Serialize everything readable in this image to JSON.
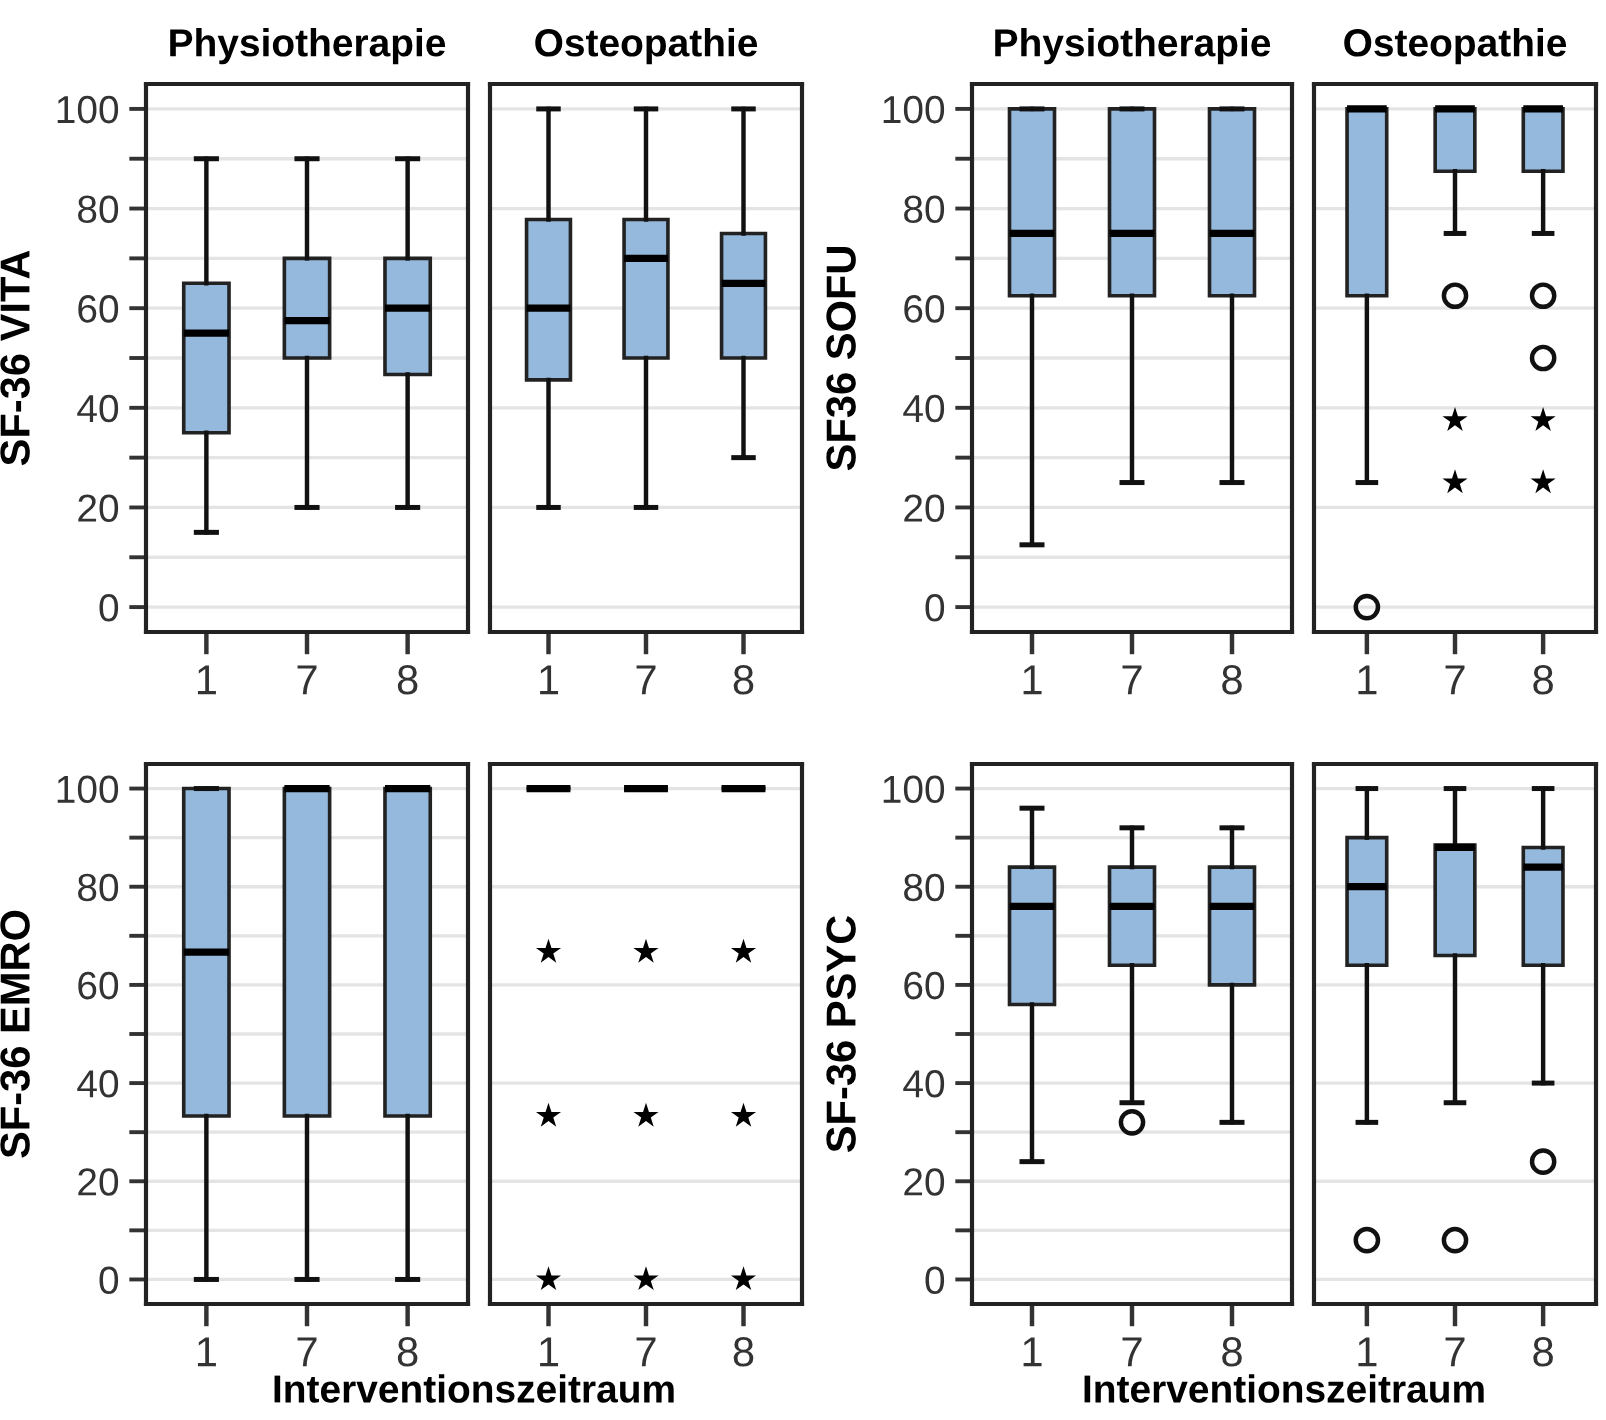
{
  "chart_data": [
    {
      "type": "box",
      "title": "Physiotherapie",
      "ylabel": "SF-36 VITA",
      "categories": [
        "1",
        "7",
        "8"
      ],
      "ylim": [
        -5,
        105
      ],
      "yticks": [
        0,
        {
          "value": 10,
          "label": null
        },
        20,
        {
          "value": 30,
          "label": null
        },
        40,
        {
          "value": 50,
          "label": null
        },
        60,
        {
          "value": 70,
          "label": null
        },
        80,
        {
          "value": 90,
          "label": null
        },
        100
      ],
      "grid": "y",
      "marker": "circle",
      "series": [
        {
          "type": "box",
          "color": "#95b9dc",
          "boxes": [
            {
              "low": 15,
              "q1": 35,
              "median": 55,
              "q3": 65,
              "high": 90
            },
            {
              "low": 20,
              "q1": 50,
              "median": 57.5,
              "q3": 70,
              "high": 90
            },
            {
              "low": 20,
              "q1": 46.7,
              "median": 60,
              "q3": 70,
              "high": 90
            }
          ]
        }
      ]
    },
    {
      "type": "box",
      "title": "Osteopathie",
      "categories": [
        "1",
        "7",
        "8"
      ],
      "ylim": [
        -5,
        105
      ],
      "yticks": [
        0,
        20,
        40,
        60,
        80,
        100
      ],
      "tick_labels": "x",
      "grid": "y",
      "marker": "circle",
      "series": [
        {
          "type": "box",
          "color": "#95b9dc",
          "boxes": [
            {
              "low": 20,
              "q1": 45.6,
              "median": 60,
              "q3": 77.8,
              "high": 100
            },
            {
              "low": 20,
              "q1": 50,
              "median": 70,
              "q3": 77.8,
              "high": 100
            },
            {
              "low": 30,
              "q1": 50,
              "median": 65,
              "q3": 75,
              "high": 100
            }
          ]
        }
      ]
    },
    {
      "type": "box",
      "title": "Physiotherapie",
      "ylabel": "SF36 SOFU",
      "categories": [
        "1",
        "7",
        "8"
      ],
      "ylim": [
        -5,
        105
      ],
      "yticks": [
        0,
        {
          "value": 10,
          "label": null
        },
        20,
        {
          "value": 30,
          "label": null
        },
        40,
        {
          "value": 50,
          "label": null
        },
        60,
        {
          "value": 70,
          "label": null
        },
        80,
        {
          "value": 90,
          "label": null
        },
        100
      ],
      "grid": "y",
      "marker": "circle",
      "series": [
        {
          "type": "box",
          "color": "#95b9dc",
          "boxes": [
            {
              "low": 12.5,
              "q1": 62.5,
              "median": 75,
              "q3": 100,
              "high": 100
            },
            {
              "low": 25,
              "q1": 62.5,
              "median": 75,
              "q3": 100,
              "high": 100
            },
            {
              "low": 25,
              "q1": 62.5,
              "median": 75,
              "q3": 100,
              "high": 100
            }
          ]
        }
      ]
    },
    {
      "type": "box",
      "title": "Osteopathie",
      "categories": [
        "1",
        "7",
        "8"
      ],
      "ylim": [
        -5,
        105
      ],
      "yticks": [
        0,
        20,
        40,
        60,
        80,
        100
      ],
      "tick_labels": "x",
      "grid": "y",
      "marker": "circle",
      "series": [
        {
          "type": "box",
          "color": "#95b9dc",
          "boxes": [
            {
              "low": 25,
              "q1": 62.5,
              "median": 100,
              "q3": 100,
              "high": 100,
              "outliers": [
                0
              ]
            },
            {
              "low": 75,
              "q1": 87.5,
              "median": 100,
              "q3": 100,
              "high": 100,
              "outliers": [
                62.5
              ]
            },
            {
              "low": 75,
              "q1": 87.5,
              "median": 100,
              "q3": 100,
              "high": 100,
              "outliers": [
                62.5,
                50
              ]
            }
          ]
        },
        {
          "type": "scatter",
          "marker": "star",
          "color": "#000000",
          "x": [
            "7",
            "7",
            "8",
            "8"
          ],
          "values": [
            37.5,
            25,
            37.5,
            25
          ]
        }
      ]
    },
    {
      "type": "box",
      "ylabel": "SF-36 EMRO",
      "xlabel": "Interventionszeitraum",
      "categories": [
        "1",
        "7",
        "8"
      ],
      "ylim": [
        -5,
        105
      ],
      "yticks": [
        0,
        {
          "value": 10,
          "label": null
        },
        20,
        {
          "value": 30,
          "label": null
        },
        40,
        {
          "value": 50,
          "label": null
        },
        60,
        {
          "value": 70,
          "label": null
        },
        80,
        {
          "value": 90,
          "label": null
        },
        100
      ],
      "grid": "y",
      "marker": "circle",
      "series": [
        {
          "type": "box",
          "color": "#95b9dc",
          "boxes": [
            {
              "low": 0,
              "q1": 33.3,
              "median": 66.7,
              "q3": 100,
              "high": 100
            },
            {
              "low": 0,
              "q1": 33.3,
              "median": 100,
              "q3": 100,
              "high": 100
            },
            {
              "low": 0,
              "q1": 33.3,
              "median": 100,
              "q3": 100,
              "high": 100
            }
          ]
        }
      ]
    },
    {
      "type": "box",
      "categories": [
        "1",
        "7",
        "8"
      ],
      "ylim": [
        -5,
        105
      ],
      "yticks": [
        0,
        20,
        40,
        60,
        80,
        100
      ],
      "tick_labels": "x",
      "grid": "y",
      "marker": "circle",
      "series": [
        {
          "type": "box",
          "boxes": [
            {
              "low": 100,
              "q1": 100,
              "median": 100,
              "q3": 100,
              "high": 100
            },
            {
              "low": 100,
              "q1": 100,
              "median": 100,
              "q3": 100,
              "high": 100
            },
            {
              "low": 100,
              "q1": 100,
              "median": 100,
              "q3": 100,
              "high": 100
            }
          ]
        },
        {
          "type": "scatter",
          "marker": "star",
          "color": "#000000",
          "x": [
            "1",
            "1",
            "1",
            "7",
            "7",
            "7",
            "8",
            "8",
            "8"
          ],
          "values": [
            66.7,
            33.3,
            0,
            66.7,
            33.3,
            0,
            66.7,
            33.3,
            0
          ]
        }
      ]
    },
    {
      "type": "box",
      "ylabel": "SF-36 PSYC",
      "xlabel": "Interventionszeitraum",
      "categories": [
        "1",
        "7",
        "8"
      ],
      "ylim": [
        -5,
        105
      ],
      "yticks": [
        0,
        {
          "value": 10,
          "label": null
        },
        20,
        {
          "value": 30,
          "label": null
        },
        40,
        {
          "value": 50,
          "label": null
        },
        60,
        {
          "value": 70,
          "label": null
        },
        80,
        {
          "value": 90,
          "label": null
        },
        100
      ],
      "grid": "y",
      "marker": "circle",
      "series": [
        {
          "type": "box",
          "color": "#95b9dc",
          "boxes": [
            {
              "low": 24,
              "q1": 56,
              "median": 76,
              "q3": 84,
              "high": 96
            },
            {
              "low": 36,
              "q1": 64,
              "median": 76,
              "q3": 84,
              "high": 92,
              "outliers": [
                32
              ]
            },
            {
              "low": 32,
              "q1": 60,
              "median": 76,
              "q3": 84,
              "high": 92
            }
          ]
        }
      ]
    },
    {
      "type": "box",
      "categories": [
        "1",
        "7",
        "8"
      ],
      "ylim": [
        -5,
        105
      ],
      "yticks": [
        0,
        20,
        40,
        60,
        80,
        100
      ],
      "tick_labels": "x",
      "grid": "y",
      "marker": "circle",
      "series": [
        {
          "type": "box",
          "color": "#95b9dc",
          "boxes": [
            {
              "low": 32,
              "q1": 64,
              "median": 80,
              "q3": 90,
              "high": 100,
              "outliers": [
                8
              ]
            },
            {
              "low": 36,
              "q1": 66,
              "median": 88,
              "q3": 88.5,
              "high": 100,
              "outliers": [
                8
              ]
            },
            {
              "low": 40,
              "q1": 64,
              "median": 84,
              "q3": 88,
              "high": 100,
              "outliers": [
                24
              ]
            }
          ]
        }
      ]
    }
  ]
}
